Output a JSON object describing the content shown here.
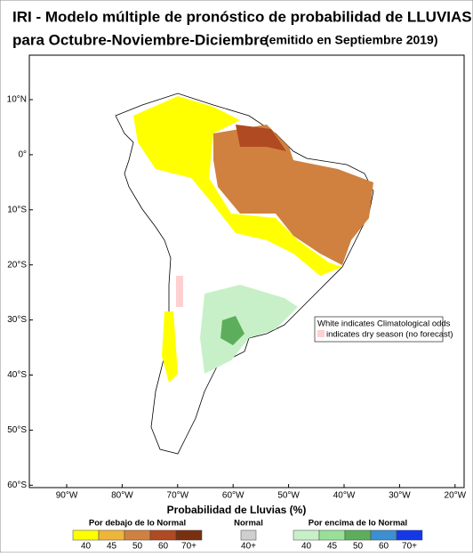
{
  "header": {
    "title_line1": "IRI - Modelo múltiple de pronóstico de probabilidad de LLUVIAS",
    "title_line2": "para Octubre-Noviembre-Diciembre",
    "issued": "(emitido en Septiembre 2019)"
  },
  "map": {
    "lat_labels": [
      "10°N",
      "0°",
      "10°S",
      "20°S",
      "30°S",
      "40°S",
      "50°S",
      "60°S"
    ],
    "lon_labels": [
      "90°W",
      "80°W",
      "70°W",
      "60°W",
      "50°W",
      "40°W",
      "30°W",
      "20°W"
    ],
    "note_line1": "White indicates Climatological odds",
    "note_line2": "indicates dry season (no forecast)"
  },
  "legend": {
    "title": "Probabilidad de Lluvias (%)",
    "groups": [
      {
        "name": "Por debajo de lo Normal",
        "items": [
          {
            "label": "40",
            "color": "#ffff00"
          },
          {
            "label": "45",
            "color": "#eeb53a"
          },
          {
            "label": "50",
            "color": "#d0813f"
          },
          {
            "label": "60",
            "color": "#b04a22"
          },
          {
            "label": "70+",
            "color": "#783010"
          }
        ]
      },
      {
        "name": "Normal",
        "items": [
          {
            "label": "40+",
            "color": "#cfcfcf"
          }
        ]
      },
      {
        "name": "Por encima de lo Normal",
        "items": [
          {
            "label": "40",
            "color": "#c8f0c8"
          },
          {
            "label": "45",
            "color": "#98e098"
          },
          {
            "label": "50",
            "color": "#5cae5c"
          },
          {
            "label": "60",
            "color": "#3c8fd0"
          },
          {
            "label": "70+",
            "color": "#1438e8"
          }
        ]
      }
    ]
  }
}
